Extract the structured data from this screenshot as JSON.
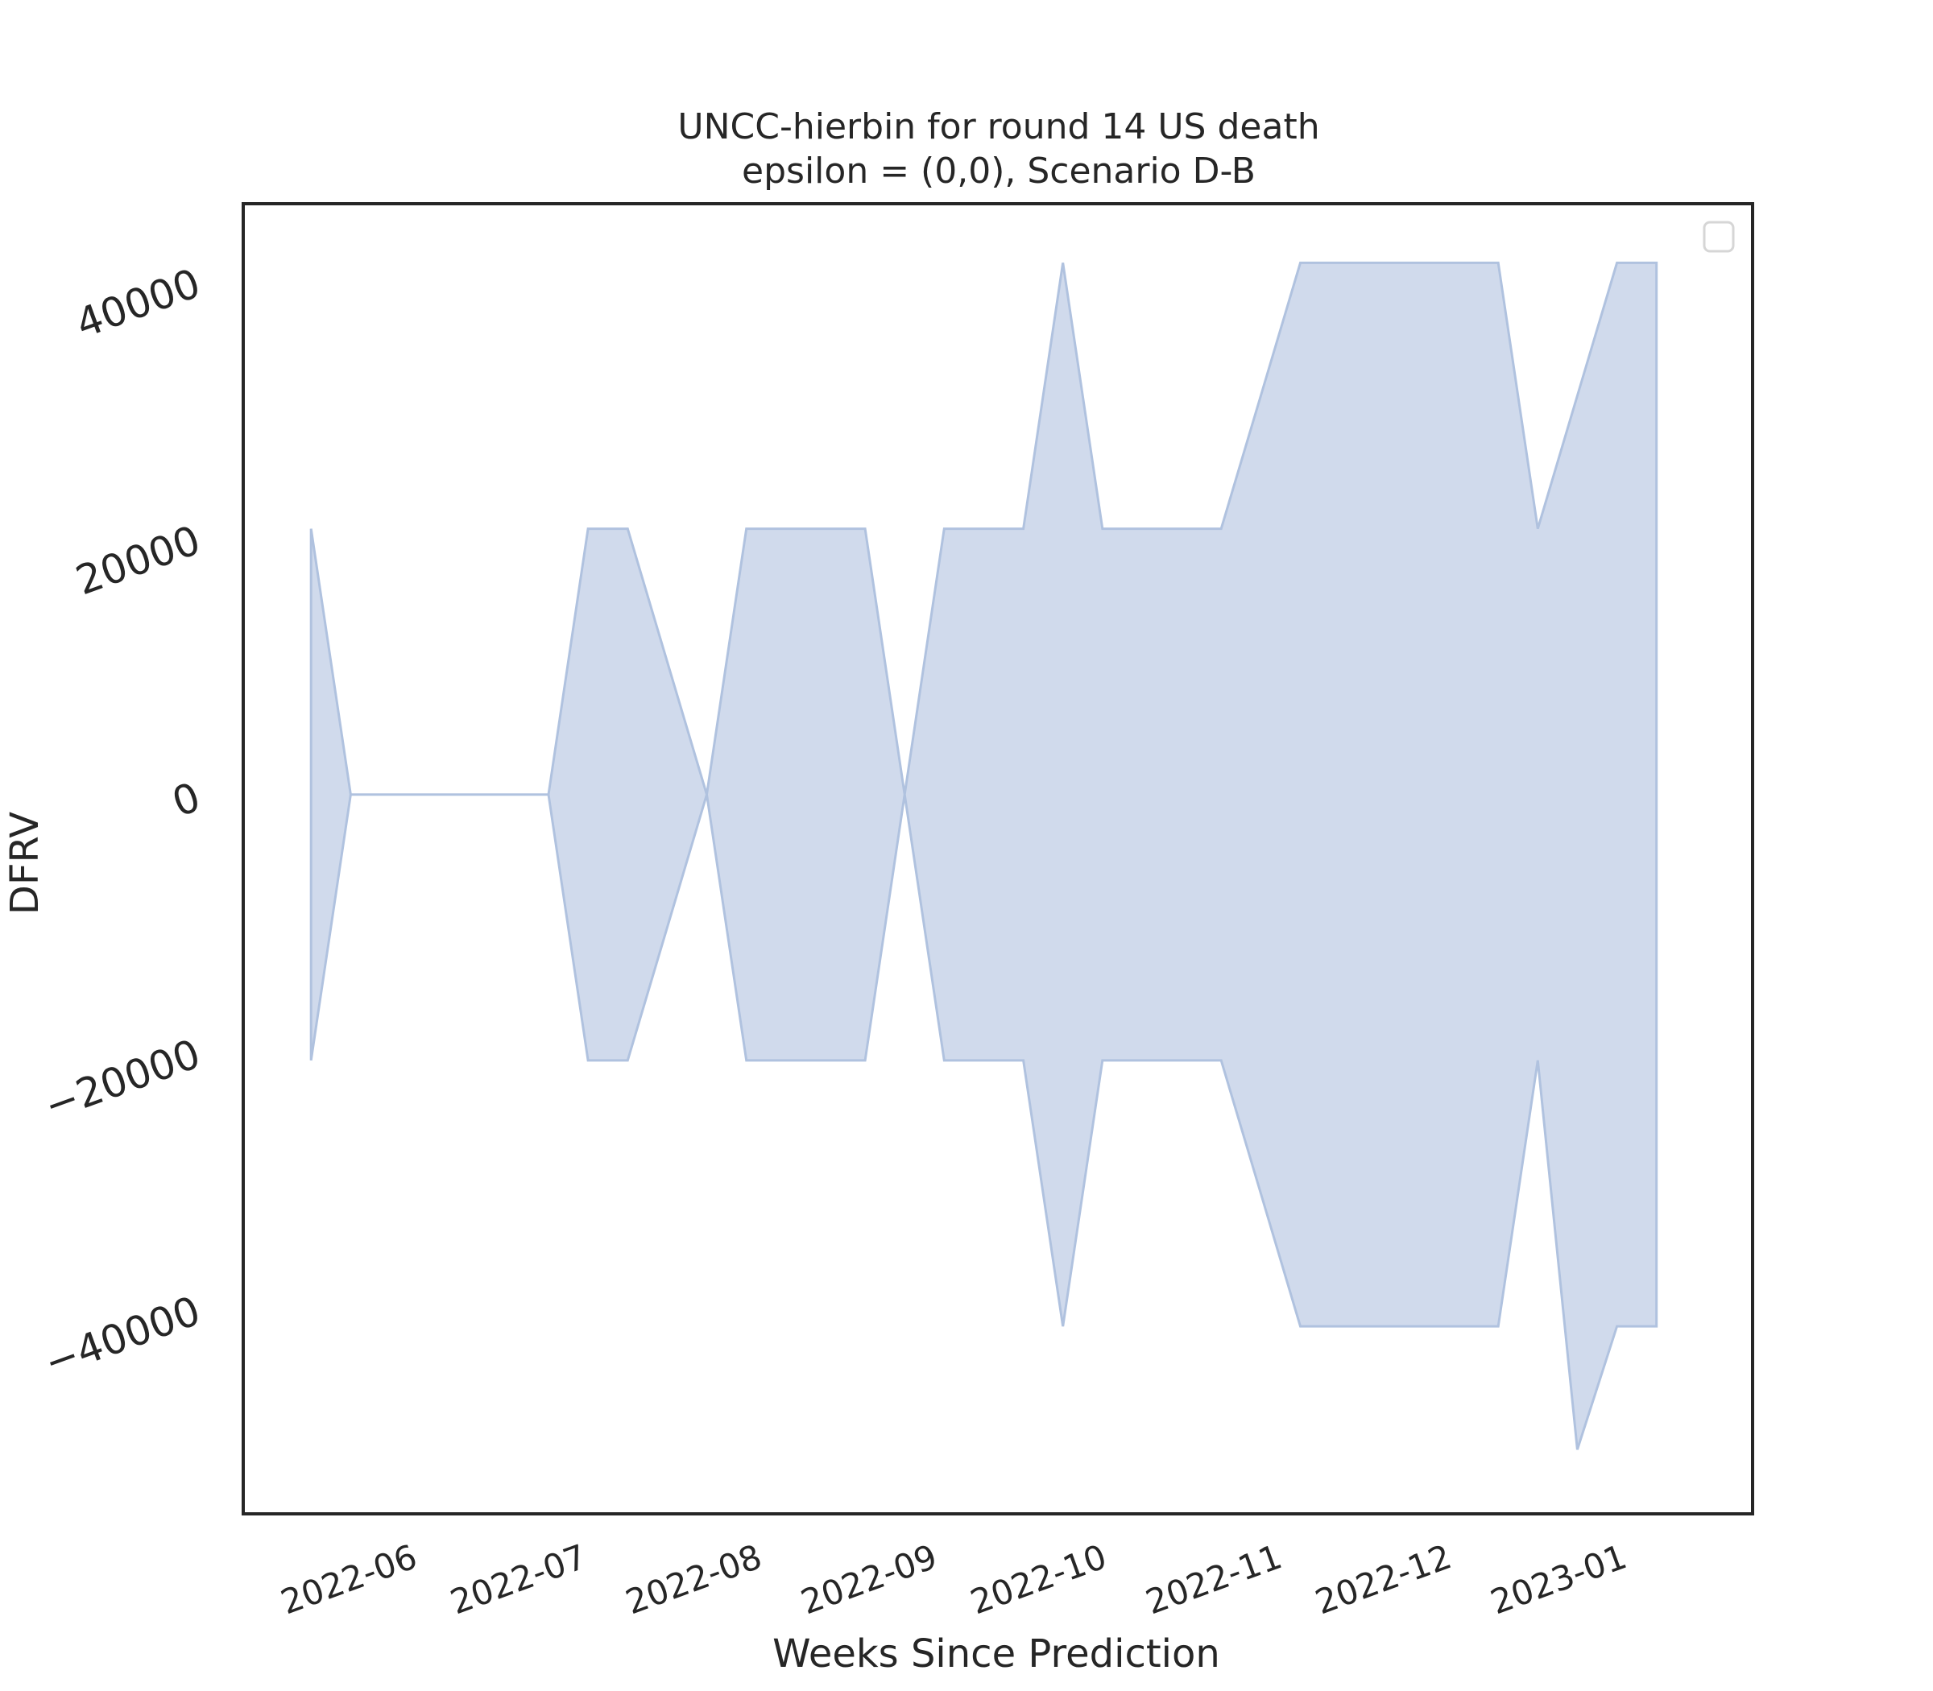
{
  "chart_data": {
    "type": "area",
    "title_line1": "UNCC-hierbin for round 14 US death",
    "title_line2": "epsilon = (0,0), Scenario D-B",
    "xlabel": "Weeks Since Prediction",
    "ylabel": "DFRV",
    "ylim": [
      -56000,
      46000
    ],
    "yticks": [
      -40000,
      -20000,
      0,
      20000,
      40000
    ],
    "yticklabels": [
      "−40000",
      "−20000",
      "0",
      "20000",
      "40000"
    ],
    "xlim": [
      "2022-05-04",
      "2023-01-26"
    ],
    "xticks": [
      "2022-06-01",
      "2022-07-01",
      "2022-08-01",
      "2022-09-01",
      "2022-10-01",
      "2022-11-01",
      "2022-12-01",
      "2023-01-01"
    ],
    "xticklabels": [
      "2022-06",
      "2022-07",
      "2022-08",
      "2022-09",
      "2022-10",
      "2022-11",
      "2022-12",
      "2023-01"
    ],
    "grid": false,
    "legend": {
      "placement": "top-right",
      "entries": []
    },
    "fill_color": "#b0c2df",
    "fill_opacity": 0.6,
    "edge_color": "#b0c2df",
    "series": [
      {
        "x": [
          "2022-05-16",
          "2022-05-23",
          "2022-05-30",
          "2022-06-06",
          "2022-06-13",
          "2022-06-20",
          "2022-06-27",
          "2022-07-04",
          "2022-07-11",
          "2022-07-18",
          "2022-07-25",
          "2022-08-01",
          "2022-08-08",
          "2022-08-15",
          "2022-08-22",
          "2022-08-29",
          "2022-09-05",
          "2022-09-12",
          "2022-09-19",
          "2022-09-26",
          "2022-10-03",
          "2022-10-10",
          "2022-10-17",
          "2022-10-24",
          "2022-10-31",
          "2022-11-07",
          "2022-11-14",
          "2022-11-21",
          "2022-11-28",
          "2022-12-05",
          "2022-12-12",
          "2022-12-19",
          "2022-12-26",
          "2023-01-02",
          "2023-01-09"
        ],
        "upper": [
          20700,
          0,
          0,
          0,
          0,
          0,
          0,
          20700,
          20700,
          10350,
          0,
          20700,
          20700,
          20700,
          20700,
          0,
          20700,
          20700,
          20700,
          41400,
          20700,
          20700,
          20700,
          20700,
          31050,
          41400,
          41400,
          41400,
          41400,
          41400,
          41400,
          20700,
          31050,
          41400,
          41400
        ],
        "lower": [
          -20700,
          0,
          0,
          0,
          0,
          0,
          0,
          -20700,
          -20700,
          -10350,
          0,
          -20700,
          -20700,
          -20700,
          -20700,
          0,
          -20700,
          -20700,
          -20700,
          -41400,
          -20700,
          -20700,
          -20700,
          -20700,
          -31050,
          -41400,
          -41400,
          -41400,
          -41400,
          -41400,
          -41400,
          -20700,
          -51000,
          -41400,
          -41400
        ]
      }
    ]
  }
}
